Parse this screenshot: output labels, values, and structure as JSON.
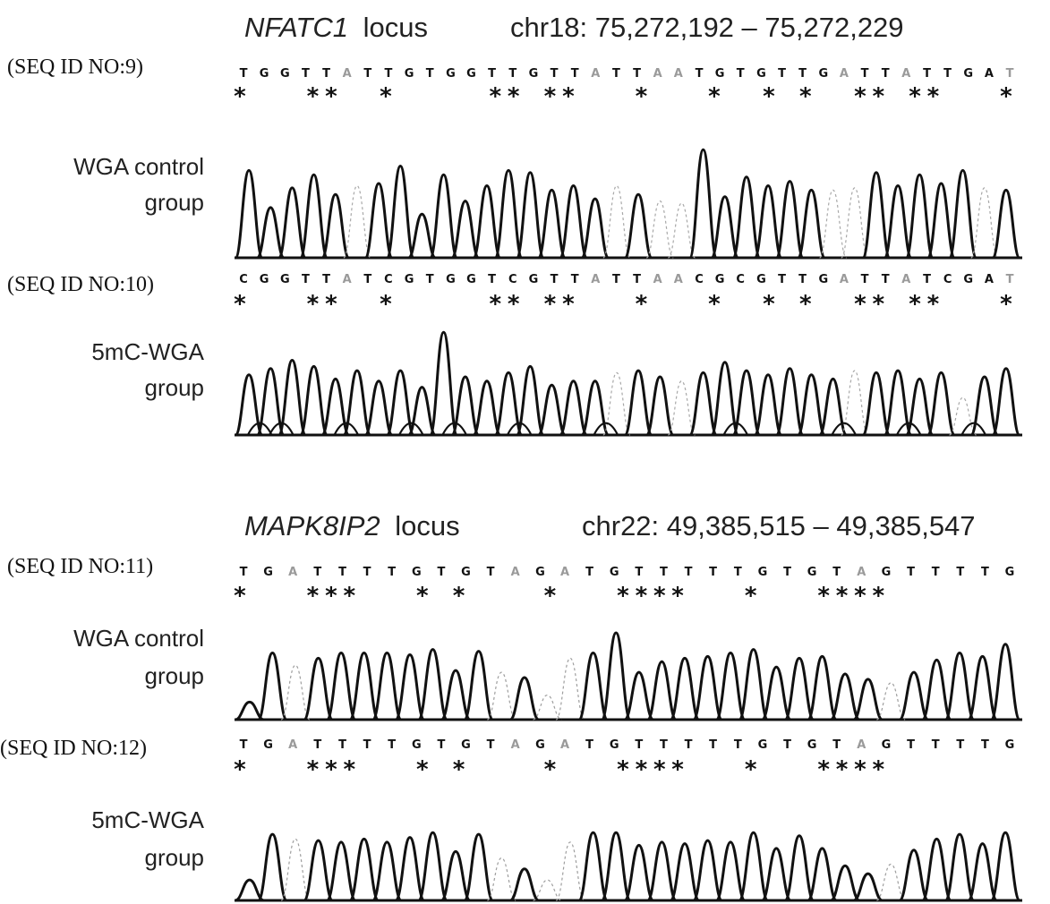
{
  "colors": {
    "ink": "#111111",
    "faint": "#9a9a9a",
    "background": "#ffffff"
  },
  "panels": [
    {
      "locus_gene": "NFATC1",
      "locus_word": "locus",
      "coordinates": "chr18: 75,272,192 – 75,272,229",
      "tracks": [
        {
          "seq_id": "(SEQ ID NO:9)",
          "bases": [
            "T",
            "G",
            "G",
            "T",
            "T",
            "A",
            "T",
            "T",
            "G",
            "T",
            "G",
            "G",
            "T",
            "T",
            "G",
            "T",
            "T",
            "A",
            "T",
            "T",
            "A",
            "A",
            "T",
            "G",
            "T",
            "G",
            "T",
            "T",
            "G",
            "A",
            "T",
            "T",
            "A",
            "T",
            "T",
            "G",
            "A",
            "T"
          ],
          "faint": [
            5,
            17,
            20,
            21,
            29,
            32,
            37
          ],
          "stars": [
            0,
            4,
            5,
            8,
            14,
            15,
            17,
            18,
            22,
            26,
            29,
            31,
            34,
            35,
            37,
            38,
            42
          ],
          "group_label": [
            "WGA control",
            "group"
          ],
          "trace": {
            "peaks": [
              0.8,
              0.46,
              0.64,
              0.76,
              0.58,
              0.66,
              0.68,
              0.84,
              0.4,
              0.76,
              0.52,
              0.66,
              0.8,
              0.78,
              0.62,
              0.66,
              0.54,
              0.66,
              0.58,
              0.52,
              0.5,
              0.99,
              0.56,
              0.74,
              0.66,
              0.7,
              0.62,
              0.62,
              0.64,
              0.78,
              0.66,
              0.76,
              0.68,
              0.8,
              0.64,
              0.62
            ],
            "faint": [
              5,
              17,
              19,
              20,
              27,
              28,
              34
            ]
          }
        },
        {
          "seq_id": "(SEQ ID NO:10)",
          "bases": [
            "C",
            "G",
            "G",
            "T",
            "T",
            "A",
            "T",
            "C",
            "G",
            "T",
            "G",
            "G",
            "T",
            "C",
            "G",
            "T",
            "T",
            "A",
            "T",
            "T",
            "A",
            "A",
            "C",
            "G",
            "C",
            "G",
            "T",
            "T",
            "G",
            "A",
            "T",
            "T",
            "A",
            "T",
            "C",
            "G",
            "A",
            "T"
          ],
          "faint": [
            5,
            17,
            20,
            21,
            29,
            32,
            37
          ],
          "stars": [
            0,
            4,
            5,
            8,
            14,
            15,
            17,
            18,
            22,
            26,
            29,
            31,
            34,
            35,
            37,
            38,
            42
          ],
          "group_label": [
            "5mC-WGA",
            "group"
          ],
          "trace": {
            "peaks": [
              0.58,
              0.64,
              0.72,
              0.66,
              0.54,
              0.62,
              0.52,
              0.62,
              0.46,
              0.99,
              0.56,
              0.52,
              0.6,
              0.66,
              0.48,
              0.52,
              0.52,
              0.6,
              0.62,
              0.56,
              0.52,
              0.6,
              0.7,
              0.62,
              0.58,
              0.64,
              0.58,
              0.54,
              0.62,
              0.6,
              0.62,
              0.54,
              0.6,
              0.36,
              0.56,
              0.64
            ],
            "faint": [
              17,
              20,
              28,
              33
            ],
            "dark_under": [
              0,
              1,
              4,
              7,
              9,
              12,
              16,
              22,
              27,
              30,
              33
            ]
          }
        }
      ]
    },
    {
      "locus_gene": "MAPK8IP2",
      "locus_word": "locus",
      "coordinates": "chr22: 49,385,515 – 49,385,547",
      "tracks": [
        {
          "seq_id": "(SEQ ID NO:11)",
          "bases": [
            "T",
            "G",
            "A",
            "T",
            "T",
            "T",
            "T",
            "G",
            "T",
            "G",
            "T",
            "A",
            "G",
            "A",
            "T",
            "G",
            "T",
            "T",
            "T",
            "T",
            "T",
            "G",
            "T",
            "G",
            "T",
            "A",
            "G",
            "T",
            "T",
            "T",
            "T",
            "G"
          ],
          "faint": [
            2,
            11,
            13,
            25
          ],
          "stars": [
            0,
            4,
            5,
            6,
            10,
            12,
            17,
            21,
            22,
            23,
            24,
            28,
            32,
            33,
            34,
            35
          ],
          "group_label": [
            "WGA control",
            "group"
          ],
          "trace": {
            "peaks": [
              0.2,
              0.76,
              0.62,
              0.7,
              0.76,
              0.76,
              0.76,
              0.74,
              0.8,
              0.56,
              0.78,
              0.54,
              0.48,
              0.28,
              0.7,
              0.76,
              0.99,
              0.54,
              0.66,
              0.7,
              0.72,
              0.76,
              0.8,
              0.6,
              0.7,
              0.72,
              0.52,
              0.46,
              0.42,
              0.54,
              0.68,
              0.76,
              0.72,
              0.86
            ],
            "faint": [
              2,
              11,
              13,
              14,
              28
            ]
          }
        },
        {
          "seq_id": "(SEQ ID NO:12)",
          "bases": [
            "T",
            "G",
            "A",
            "T",
            "T",
            "T",
            "T",
            "G",
            "T",
            "G",
            "T",
            "A",
            "G",
            "A",
            "T",
            "G",
            "T",
            "T",
            "T",
            "T",
            "T",
            "G",
            "T",
            "G",
            "T",
            "A",
            "G",
            "T",
            "T",
            "T",
            "T",
            "G"
          ],
          "faint": [
            2,
            11,
            13,
            25
          ],
          "stars": [
            0,
            4,
            5,
            6,
            10,
            12,
            17,
            21,
            22,
            23,
            24,
            28,
            32,
            33,
            34,
            35
          ],
          "group_label": [
            "5mC-WGA",
            "group"
          ],
          "trace": {
            "peaks": [
              0.26,
              0.84,
              0.78,
              0.76,
              0.74,
              0.78,
              0.74,
              0.8,
              0.86,
              0.62,
              0.84,
              0.54,
              0.4,
              0.26,
              0.74,
              0.86,
              0.86,
              0.7,
              0.74,
              0.72,
              0.76,
              0.74,
              0.86,
              0.66,
              0.82,
              0.66,
              0.44,
              0.34,
              0.46,
              0.64,
              0.78,
              0.84,
              0.72,
              0.86
            ],
            "faint": [
              2,
              11,
              13,
              14,
              28
            ]
          }
        }
      ]
    }
  ]
}
